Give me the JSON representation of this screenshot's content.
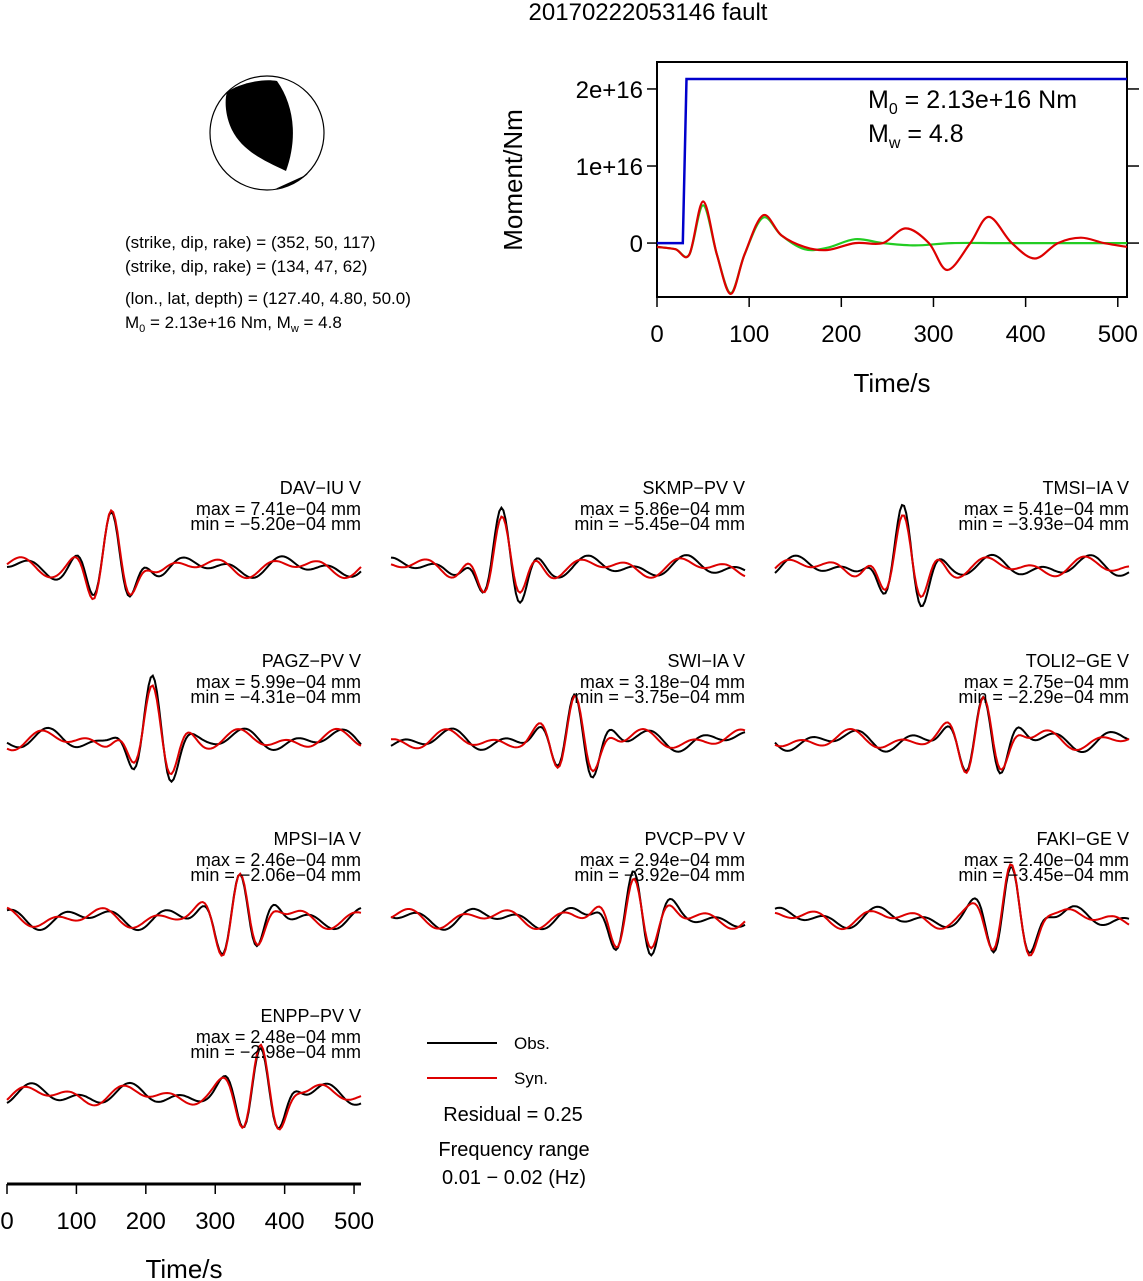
{
  "title": "20170222053146 fault",
  "mechanism": {
    "plane1": "(strike, dip, rake) = (352, 50, 117)",
    "plane2": "(strike, dip, rake) = (134, 47, 62)",
    "location": "(lon., lat, depth) = (127.40, 4.80, 50.0)",
    "m0_label": "M",
    "m0_sub": "0",
    "m0_rest": " = 2.13e+16 Nm, M",
    "mw_sub": "w",
    "mw_rest": " = 4.8"
  },
  "colors": {
    "obs": "#000000",
    "syn": "#dd0000",
    "moment": "#0000cc",
    "stf": "#22cc22"
  },
  "chart_data": [
    {
      "type": "line",
      "title": "",
      "xlabel": "Time/s",
      "ylabel": "Moment/Nm",
      "xlim": [
        0,
        510
      ],
      "ylim": [
        -7000000000000000.0,
        2.35e+16
      ],
      "x_ticks": [
        0,
        100,
        200,
        300,
        400,
        500
      ],
      "x_tick_labels": [
        "0",
        "100",
        "200",
        "300",
        "400",
        "500"
      ],
      "y_ticks": [
        0,
        1e+16,
        2e+16
      ],
      "y_tick_labels": [
        "0",
        "1e+16",
        "2e+16"
      ],
      "annotation": {
        "m0_label": "M",
        "m0_sub": "0",
        "m0_rest": " = 2.13e+16 Nm",
        "mw_label": "M",
        "mw_sub": "w",
        "mw_rest": " = 4.8"
      },
      "series": [
        {
          "color": "blue",
          "x": [
            0,
            28,
            32,
            510
          ],
          "y": [
            0,
            0,
            2.13e+16,
            2.13e+16
          ]
        },
        {
          "color": "green",
          "x": [
            0,
            20,
            35,
            50,
            65,
            80,
            95,
            115,
            135,
            160,
            185,
            215,
            245,
            280,
            320,
            370,
            420,
            470,
            510
          ],
          "y": [
            -500000000000000.0,
            -800000000000000.0,
            -1500000000000000.0,
            4900000000000000.0,
            -1500000000000000.0,
            -6500000000000000.0,
            -1500000000000000.0,
            3300000000000000.0,
            1000000000000000.0,
            -800000000000000.0,
            -600000000000000.0,
            500000000000000.0,
            0,
            -300000000000000.0,
            0,
            0,
            0,
            0,
            0
          ]
        },
        {
          "color": "red",
          "x": [
            0,
            20,
            35,
            50,
            65,
            80,
            95,
            115,
            135,
            160,
            185,
            215,
            245,
            270,
            295,
            315,
            340,
            360,
            385,
            410,
            435,
            460,
            485,
            510
          ],
          "y": [
            -500000000000000.0,
            -800000000000000.0,
            -1500000000000000.0,
            5400000000000000.0,
            -1500000000000000.0,
            -6600000000000000.0,
            -1500000000000000.0,
            3600000000000000.0,
            1000000000000000.0,
            -500000000000000.0,
            -900000000000000.0,
            0,
            0,
            1900000000000000.0,
            0,
            -3500000000000000.0,
            0,
            3400000000000000.0,
            0,
            -2000000000000000.0,
            0,
            700000000000000.0,
            0,
            -500000000000000.0
          ]
        }
      ]
    },
    {
      "type": "line",
      "xlabel": "Time/s",
      "xlim": [
        0,
        510
      ],
      "x_ticks": [
        0,
        100,
        200,
        300,
        400,
        500
      ],
      "x_tick_labels": [
        "0",
        "100",
        "200",
        "300",
        "400",
        "500"
      ],
      "legend": {
        "obs": "Obs.",
        "syn": "Syn."
      },
      "residual": "Residual = 0.25",
      "freq_title": "Frequency range",
      "freq_range": "0.01 − 0.02 (Hz)",
      "stations": [
        {
          "name": "DAV−IU V",
          "max": "max = 7.41e−04 mm",
          "min": "min = −5.20e−04 mm",
          "peak_t": 150
        },
        {
          "name": "SKMP−PV V",
          "max": "max = 5.86e−04 mm",
          "min": "min = −5.45e−04 mm",
          "peak_t": 160
        },
        {
          "name": "TMSI−IA V",
          "max": "max = 5.41e−04 mm",
          "min": "min = −3.93e−04 mm",
          "peak_t": 185
        },
        {
          "name": "PAGZ−PV V",
          "max": "max = 5.99e−04 mm",
          "min": "min = −4.31e−04 mm",
          "peak_t": 210
        },
        {
          "name": "SWI−IA V",
          "max": "max = 3.18e−04 mm",
          "min": "min = −3.75e−04 mm",
          "peak_t": 265
        },
        {
          "name": "TOLI2−GE V",
          "max": "max = 2.75e−04 mm",
          "min": "min = −2.29e−04 mm",
          "peak_t": 300
        },
        {
          "name": "MPSI−IA V",
          "max": "max = 2.46e−04 mm",
          "min": "min = −2.06e−04 mm",
          "peak_t": 335
        },
        {
          "name": "PVCP−PV V",
          "max": "max = 2.94e−04 mm",
          "min": "min = −3.92e−04 mm",
          "peak_t": 350
        },
        {
          "name": "FAKI−GE V",
          "max": "max = 2.40e−04 mm",
          "min": "min = −3.45e−04 mm",
          "peak_t": 340
        },
        {
          "name": "ENPP−PV V",
          "max": "max = 2.48e−04 mm",
          "min": "min = −2.98e−04 mm",
          "peak_t": 365
        }
      ]
    }
  ]
}
